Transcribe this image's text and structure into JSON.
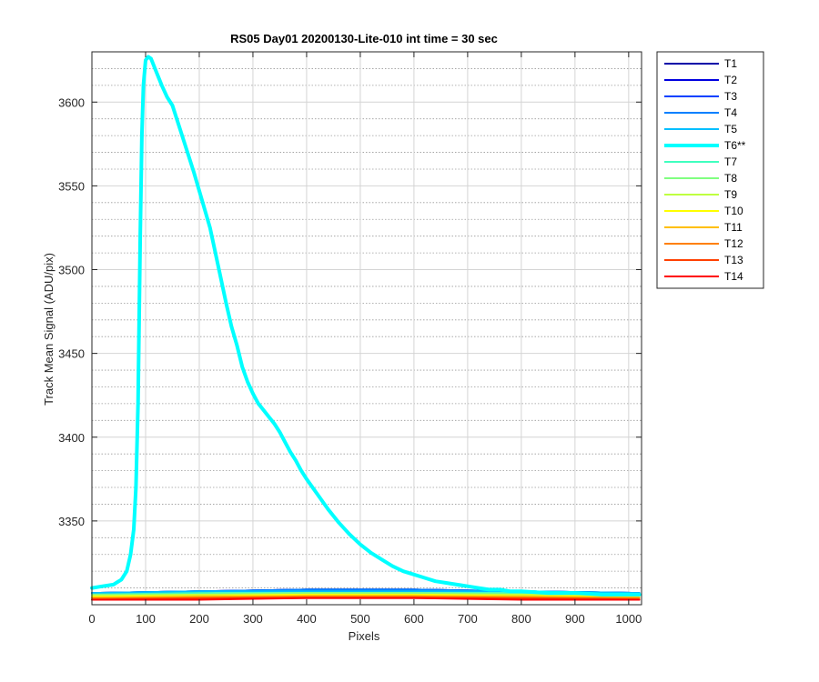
{
  "chart_data": {
    "type": "line",
    "title": "RS05 Day01 20200130-Lite-010 int time = 30 sec",
    "xlabel": "Pixels",
    "ylabel": "Track Mean Signal (ADU/pix)",
    "xlim": [
      0,
      1024
    ],
    "ylim": [
      3300,
      3630
    ],
    "x_ticks": [
      0,
      100,
      200,
      300,
      400,
      500,
      600,
      700,
      800,
      900,
      1000
    ],
    "y_ticks": [
      3350,
      3400,
      3450,
      3500,
      3550,
      3600
    ],
    "grid": true,
    "minor_grid": true,
    "legend_position": "outside-right",
    "series": [
      {
        "name": "T1",
        "color": "#0000a8",
        "points": [
          [
            0,
            3307
          ],
          [
            200,
            3308
          ],
          [
            400,
            3309
          ],
          [
            600,
            3309
          ],
          [
            800,
            3308
          ],
          [
            1020,
            3307
          ]
        ]
      },
      {
        "name": "T2",
        "color": "#0000e0",
        "points": [
          [
            0,
            3307
          ],
          [
            200,
            3308
          ],
          [
            400,
            3309
          ],
          [
            600,
            3309
          ],
          [
            800,
            3308
          ],
          [
            1020,
            3307
          ]
        ]
      },
      {
        "name": "T3",
        "color": "#0040ff",
        "points": [
          [
            0,
            3307
          ],
          [
            200,
            3308
          ],
          [
            400,
            3309
          ],
          [
            600,
            3309
          ],
          [
            800,
            3308
          ],
          [
            1020,
            3307
          ]
        ]
      },
      {
        "name": "T4",
        "color": "#0080ff",
        "points": [
          [
            0,
            3307
          ],
          [
            200,
            3308
          ],
          [
            400,
            3309
          ],
          [
            600,
            3309
          ],
          [
            800,
            3308
          ],
          [
            1020,
            3307
          ]
        ]
      },
      {
        "name": "T5",
        "color": "#00bfff",
        "points": [
          [
            0,
            3307
          ],
          [
            200,
            3308
          ],
          [
            400,
            3308
          ],
          [
            600,
            3308
          ],
          [
            800,
            3308
          ],
          [
            1020,
            3307
          ]
        ]
      },
      {
        "name": "T6**",
        "color": "#00ffff",
        "highlight": true,
        "points": [
          [
            0,
            3310
          ],
          [
            20,
            3311
          ],
          [
            40,
            3312
          ],
          [
            55,
            3315
          ],
          [
            65,
            3320
          ],
          [
            72,
            3330
          ],
          [
            78,
            3345
          ],
          [
            82,
            3370
          ],
          [
            86,
            3420
          ],
          [
            88,
            3470
          ],
          [
            90,
            3520
          ],
          [
            93,
            3580
          ],
          [
            96,
            3610
          ],
          [
            100,
            3625
          ],
          [
            105,
            3627
          ],
          [
            110,
            3626
          ],
          [
            120,
            3618
          ],
          [
            130,
            3610
          ],
          [
            140,
            3603
          ],
          [
            150,
            3598
          ],
          [
            160,
            3588
          ],
          [
            170,
            3578
          ],
          [
            180,
            3568
          ],
          [
            190,
            3558
          ],
          [
            200,
            3547
          ],
          [
            210,
            3536
          ],
          [
            220,
            3525
          ],
          [
            230,
            3510
          ],
          [
            240,
            3495
          ],
          [
            250,
            3480
          ],
          [
            260,
            3466
          ],
          [
            270,
            3455
          ],
          [
            280,
            3442
          ],
          [
            290,
            3433
          ],
          [
            300,
            3426
          ],
          [
            310,
            3420
          ],
          [
            320,
            3416
          ],
          [
            330,
            3412
          ],
          [
            340,
            3408
          ],
          [
            350,
            3403
          ],
          [
            360,
            3397
          ],
          [
            370,
            3391
          ],
          [
            380,
            3386
          ],
          [
            390,
            3380
          ],
          [
            400,
            3375
          ],
          [
            420,
            3366
          ],
          [
            440,
            3357
          ],
          [
            460,
            3349
          ],
          [
            480,
            3342
          ],
          [
            500,
            3336
          ],
          [
            520,
            3331
          ],
          [
            540,
            3327
          ],
          [
            560,
            3323
          ],
          [
            580,
            3320
          ],
          [
            600,
            3318
          ],
          [
            620,
            3316
          ],
          [
            640,
            3314
          ],
          [
            660,
            3313
          ],
          [
            680,
            3312
          ],
          [
            700,
            3311
          ],
          [
            720,
            3310
          ],
          [
            740,
            3309
          ],
          [
            760,
            3309
          ],
          [
            780,
            3308
          ],
          [
            800,
            3308
          ],
          [
            850,
            3307
          ],
          [
            900,
            3307
          ],
          [
            950,
            3306
          ],
          [
            1000,
            3306
          ],
          [
            1020,
            3306
          ]
        ]
      },
      {
        "name": "T7",
        "color": "#40ffbf",
        "points": [
          [
            0,
            3306
          ],
          [
            200,
            3307
          ],
          [
            400,
            3307
          ],
          [
            600,
            3307
          ],
          [
            800,
            3307
          ],
          [
            1020,
            3306
          ]
        ]
      },
      {
        "name": "T8",
        "color": "#80ff80",
        "points": [
          [
            0,
            3306
          ],
          [
            200,
            3306
          ],
          [
            400,
            3307
          ],
          [
            600,
            3307
          ],
          [
            800,
            3306
          ],
          [
            1020,
            3306
          ]
        ]
      },
      {
        "name": "T9",
        "color": "#bfff40",
        "points": [
          [
            0,
            3305
          ],
          [
            200,
            3306
          ],
          [
            400,
            3306
          ],
          [
            600,
            3306
          ],
          [
            800,
            3306
          ],
          [
            1020,
            3305
          ]
        ]
      },
      {
        "name": "T10",
        "color": "#ffff00",
        "points": [
          [
            0,
            3305
          ],
          [
            200,
            3305
          ],
          [
            400,
            3306
          ],
          [
            600,
            3306
          ],
          [
            800,
            3305
          ],
          [
            1020,
            3305
          ]
        ]
      },
      {
        "name": "T11",
        "color": "#ffbf00",
        "points": [
          [
            0,
            3304
          ],
          [
            200,
            3305
          ],
          [
            400,
            3305
          ],
          [
            600,
            3305
          ],
          [
            800,
            3305
          ],
          [
            1020,
            3304
          ]
        ]
      },
      {
        "name": "T12",
        "color": "#ff8000",
        "points": [
          [
            0,
            3304
          ],
          [
            200,
            3304
          ],
          [
            400,
            3305
          ],
          [
            600,
            3305
          ],
          [
            800,
            3304
          ],
          [
            1020,
            3304
          ]
        ]
      },
      {
        "name": "T13",
        "color": "#ff4000",
        "points": [
          [
            0,
            3303
          ],
          [
            200,
            3304
          ],
          [
            400,
            3304
          ],
          [
            600,
            3304
          ],
          [
            800,
            3304
          ],
          [
            1020,
            3303
          ]
        ]
      },
      {
        "name": "T14",
        "color": "#ff0000",
        "points": [
          [
            0,
            3303
          ],
          [
            200,
            3303
          ],
          [
            400,
            3304
          ],
          [
            600,
            3304
          ],
          [
            800,
            3303
          ],
          [
            1020,
            3303
          ]
        ]
      }
    ]
  }
}
